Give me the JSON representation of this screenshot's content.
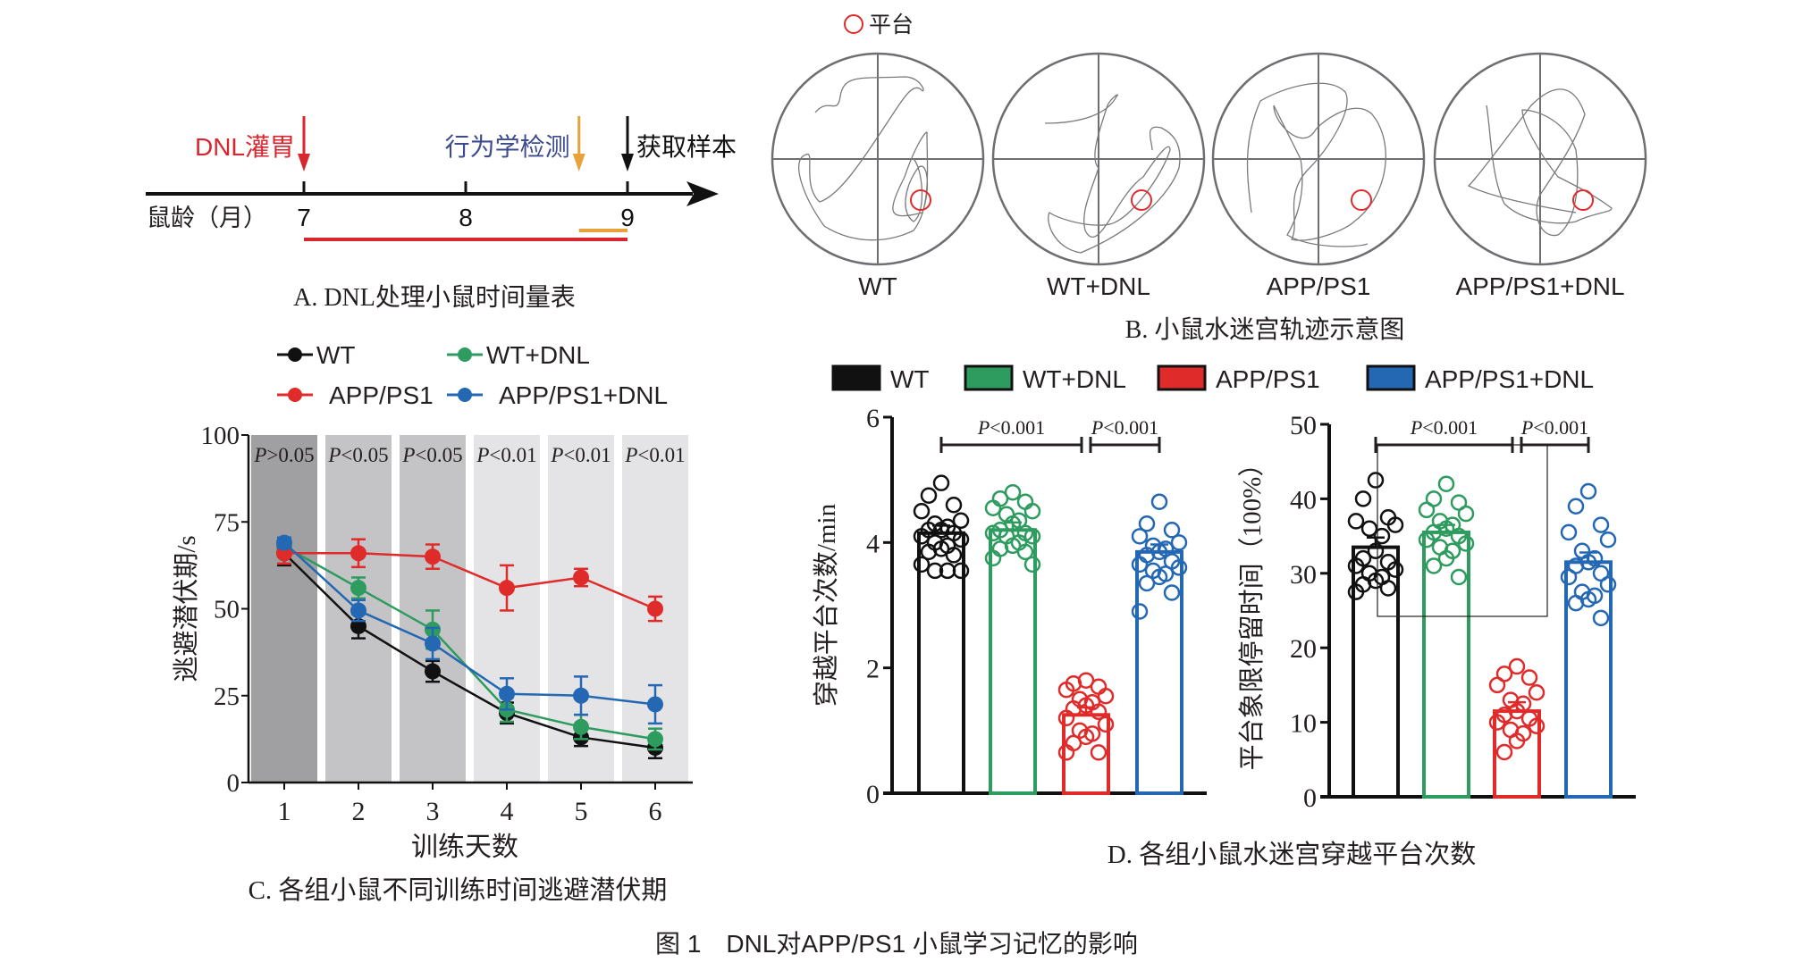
{
  "figure": {
    "caption": "图 1　DNL对APP/PS1 小鼠学习记忆的影响"
  },
  "panel_a": {
    "caption": "A. DNL处理小鼠时间量表",
    "axis_label": "鼠龄（月）",
    "ticks": [
      "7",
      "8",
      "9"
    ],
    "events": [
      {
        "label": "DNL灌胃",
        "at_month": 7,
        "color": "#d7262e"
      },
      {
        "label": "行为学检测",
        "at_month": 8.7,
        "color": "#e9a23b",
        "label_color": "#3c4a8e"
      },
      {
        "label": "获取样本",
        "at_month": 9,
        "color": "#111111"
      }
    ],
    "periods": [
      {
        "name": "treatment",
        "from_month": 7,
        "to_month": 9,
        "color": "#d7262e"
      },
      {
        "name": "behavior-test",
        "from_month": 8.7,
        "to_month": 9,
        "color": "#e9a23b"
      }
    ]
  },
  "panel_b": {
    "caption": "B. 小鼠水迷宫轨迹示意图",
    "legend_label": "平台",
    "platform_color": "#e02b2b",
    "groups": [
      "WT",
      "WT+DNL",
      "APP/PS1",
      "APP/PS1+DNL"
    ]
  },
  "groups": [
    {
      "name": "WT",
      "color": "#111111"
    },
    {
      "name": "WT+DNL",
      "color": "#2e9b5f"
    },
    {
      "name": "APP/PS1",
      "color": "#e02b2b"
    },
    {
      "name": "APP/PS1+DNL",
      "color": "#2468b4"
    }
  ],
  "chart_data": [
    {
      "id": "C",
      "type": "line",
      "caption": "C. 各组小鼠不同训练时间逃避潜伏期",
      "xlabel": "训练天数",
      "ylabel": "逃避潜伏期/s",
      "x": [
        1,
        2,
        3,
        4,
        5,
        6
      ],
      "xticks": [
        "1",
        "2",
        "3",
        "4",
        "5",
        "6"
      ],
      "yticks": [
        "0",
        "25",
        "50",
        "75",
        "100"
      ],
      "ylim": [
        0,
        100
      ],
      "legend": "top",
      "band_labels": [
        "P>0.05",
        "P<0.05",
        "P<0.05",
        "P<0.01",
        "P<0.01",
        "P<0.01"
      ],
      "band_colors": [
        "#a09fa1",
        "#c4c3c5",
        "#c4c3c5",
        "#e4e3e5",
        "#e4e3e5",
        "#e4e3e5"
      ],
      "series": [
        {
          "name": "WT",
          "color": "#111111",
          "values": [
            66,
            45,
            32,
            20,
            13,
            10
          ],
          "err": [
            3.5,
            3.5,
            3,
            3,
            2.5,
            3
          ]
        },
        {
          "name": "WT+DNL",
          "color": "#2e9b5f",
          "values": [
            68,
            56,
            44,
            21,
            16,
            12.5
          ],
          "err": [
            2,
            3,
            5.5,
            3.5,
            3.5,
            3
          ]
        },
        {
          "name": "APP/PS1",
          "color": "#e02b2b",
          "values": [
            66,
            66,
            65,
            56,
            59,
            50
          ],
          "err": [
            3,
            4,
            3.5,
            6.5,
            2.5,
            3.5
          ]
        },
        {
          "name": "APP/PS1+DNL",
          "color": "#2468b4",
          "values": [
            69,
            49.5,
            40,
            25.5,
            25,
            22.5
          ],
          "err": [
            1.5,
            3,
            4.5,
            4.5,
            5.5,
            5.5
          ]
        }
      ]
    },
    {
      "id": "D1",
      "type": "bar",
      "ylabel": "穿越平台次数/min",
      "categories": [
        "WT",
        "WT+DNL",
        "APP/PS1",
        "APP/PS1+DNL"
      ],
      "values": [
        4.15,
        4.2,
        1.25,
        3.85
      ],
      "err": [
        0.12,
        0.12,
        0.12,
        0.12
      ],
      "ylim": [
        0,
        6
      ],
      "yticks": [
        "0",
        "2",
        "4",
        "6"
      ],
      "points": [
        [
          4.95,
          4.75,
          4.6,
          4.5,
          4.35,
          4.3,
          4.25,
          4.2,
          4.2,
          4.15,
          4.1,
          4.05,
          4.0,
          3.95,
          3.9,
          3.85,
          3.8,
          3.65,
          3.55,
          3.55,
          3.55
        ],
        [
          4.8,
          4.7,
          4.65,
          4.55,
          4.5,
          4.45,
          4.35,
          4.3,
          4.2,
          4.15,
          4.15,
          4.1,
          4.1,
          4.0,
          3.95,
          3.9,
          3.85,
          3.75,
          3.65
        ],
        [
          1.8,
          1.75,
          1.7,
          1.65,
          1.55,
          1.5,
          1.45,
          1.4,
          1.35,
          1.3,
          1.2,
          1.1,
          1.0,
          0.95,
          0.9,
          0.8,
          0.65,
          0.65
        ],
        [
          4.65,
          4.3,
          4.2,
          4.1,
          4.0,
          3.95,
          3.9,
          3.85,
          3.8,
          3.7,
          3.65,
          3.6,
          3.55,
          3.5,
          3.45,
          3.35,
          3.2,
          2.9
        ]
      ],
      "comparisons": [
        {
          "from": 0,
          "to": 2,
          "label": "P<0.001"
        },
        {
          "from": 2,
          "to": 3,
          "label": "P<0.001"
        }
      ]
    },
    {
      "id": "D2",
      "type": "bar",
      "ylabel": "平台象限停留时间（100%）",
      "categories": [
        "WT",
        "WT+DNL",
        "APP/PS1",
        "APP/PS1+DNL"
      ],
      "values": [
        33.5,
        35.5,
        11.5,
        31.5
      ],
      "err": [
        1.3,
        1.0,
        1.2,
        1.3
      ],
      "ylim": [
        0,
        50
      ],
      "yticks": [
        "0",
        "10",
        "20",
        "30",
        "40",
        "50"
      ],
      "points": [
        [
          42.5,
          40,
          37.5,
          37,
          36.5,
          36,
          35,
          33,
          32,
          31.5,
          31,
          30.5,
          30,
          29.5,
          29,
          28.5,
          28,
          27.5
        ],
        [
          42,
          40,
          39.5,
          38.5,
          38,
          37,
          36.5,
          36,
          35.5,
          35,
          34.5,
          34,
          33.5,
          33,
          32,
          31,
          29.5
        ],
        [
          17.5,
          16.5,
          16,
          15,
          14,
          13,
          12.5,
          11.5,
          11,
          10.5,
          10,
          9.5,
          9,
          8.5,
          7.5,
          6
        ],
        [
          41,
          39,
          36.5,
          35.5,
          34.5,
          33,
          32,
          31.5,
          31,
          30,
          29.5,
          28.5,
          27.5,
          27,
          26.5,
          26,
          24
        ]
      ],
      "comparisons": [
        {
          "from": 0,
          "to": 2,
          "label": "P<0.001"
        },
        {
          "from": 2,
          "to": 3,
          "label": "P<0.001"
        }
      ]
    }
  ],
  "panel_d": {
    "caption": "D. 各组小鼠水迷宫穿越平台次数"
  }
}
